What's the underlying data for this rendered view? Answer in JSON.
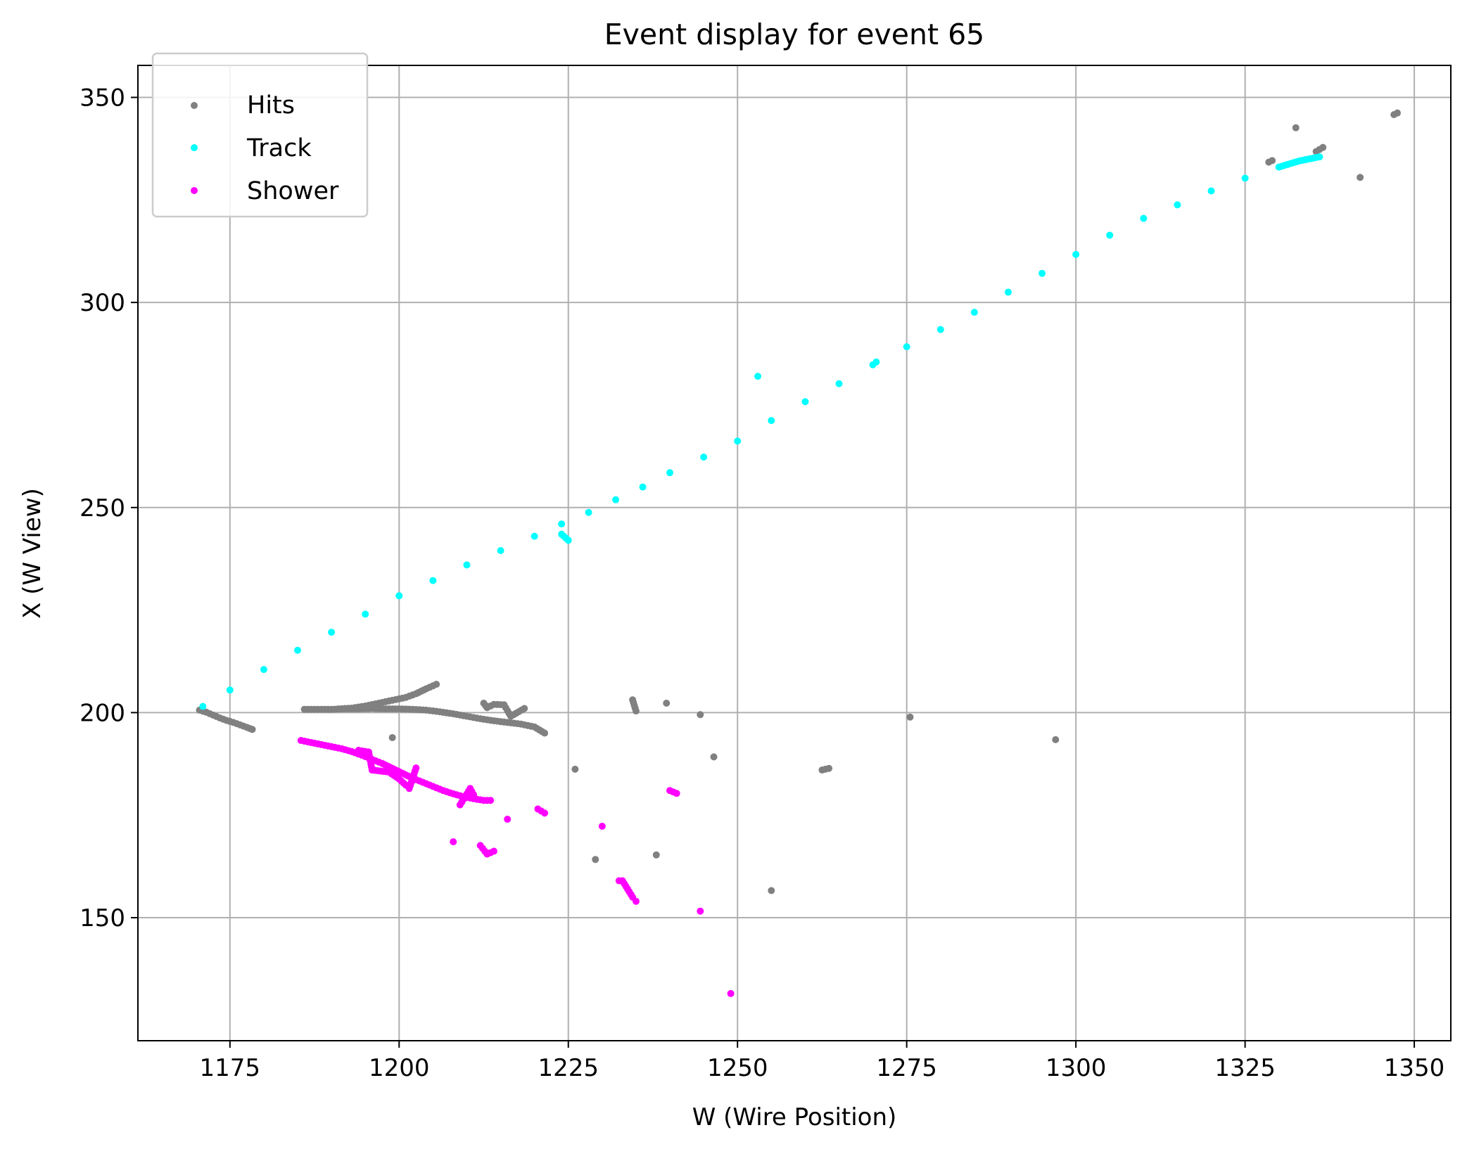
{
  "chart_data": {
    "type": "scatter",
    "title": "Event display for event 65",
    "xlabel": "W (Wire Position)",
    "ylabel": "X (W View)",
    "xlim": [
      1161.4,
      1355.4
    ],
    "ylim": [
      120.0,
      357.8
    ],
    "xticks": [
      1175,
      1200,
      1225,
      1250,
      1275,
      1300,
      1325,
      1350
    ],
    "yticks": [
      150,
      200,
      250,
      300,
      350
    ],
    "grid": true,
    "legend_position": "top-left",
    "series": [
      {
        "name": "Hits",
        "color": "#808080",
        "marker": "dot",
        "points": [
          [
            1170.5,
            200.6
          ],
          [
            1171.5,
            200.1
          ],
          [
            1172.5,
            199.4
          ],
          [
            1173.5,
            198.7
          ],
          [
            1174.5,
            198.1
          ],
          [
            1175.5,
            197.6
          ],
          [
            1176.5,
            197.0
          ],
          [
            1177.5,
            196.4
          ],
          [
            1178.3,
            195.9
          ],
          [
            1186.0,
            200.8
          ],
          [
            1188.0,
            200.8
          ],
          [
            1190.0,
            200.8
          ],
          [
            1192.0,
            200.9
          ],
          [
            1194.0,
            200.9
          ],
          [
            1196.0,
            201.0
          ],
          [
            1198.0,
            200.9
          ],
          [
            1200.0,
            200.9
          ],
          [
            1202.0,
            200.8
          ],
          [
            1204.0,
            200.6
          ],
          [
            1206.0,
            200.2
          ],
          [
            1208.0,
            199.7
          ],
          [
            1210.0,
            199.1
          ],
          [
            1212.0,
            198.5
          ],
          [
            1214.0,
            198.0
          ],
          [
            1216.0,
            197.6
          ],
          [
            1218.0,
            197.2
          ],
          [
            1220.0,
            196.5
          ],
          [
            1221.5,
            195.0
          ],
          [
            1191.0,
            200.9
          ],
          [
            1193.0,
            201.1
          ],
          [
            1195.0,
            201.6
          ],
          [
            1197.0,
            202.3
          ],
          [
            1199.0,
            203.0
          ],
          [
            1201.0,
            203.7
          ],
          [
            1202.5,
            204.6
          ],
          [
            1204.0,
            205.8
          ],
          [
            1205.5,
            206.9
          ],
          [
            1212.5,
            202.3
          ],
          [
            1213.0,
            201.2
          ],
          [
            1214.0,
            202.0
          ],
          [
            1215.5,
            201.9
          ],
          [
            1216.5,
            199.1
          ],
          [
            1218.5,
            201.0
          ],
          [
            1199.0,
            193.9
          ],
          [
            1226.0,
            186.2
          ],
          [
            1229.0,
            164.2
          ],
          [
            1234.5,
            203.1
          ],
          [
            1235.0,
            200.4
          ],
          [
            1238.0,
            165.3
          ],
          [
            1239.5,
            202.3
          ],
          [
            1244.5,
            199.5
          ],
          [
            1246.5,
            189.2
          ],
          [
            1255.0,
            156.6
          ],
          [
            1262.5,
            186.0
          ],
          [
            1263.5,
            186.4
          ],
          [
            1275.5,
            198.9
          ],
          [
            1297.0,
            193.4
          ],
          [
            1328.5,
            334.2
          ],
          [
            1329.0,
            334.6
          ],
          [
            1332.5,
            342.6
          ],
          [
            1335.5,
            336.8
          ],
          [
            1336.5,
            337.8
          ],
          [
            1342.0,
            330.5
          ],
          [
            1347.0,
            345.8
          ],
          [
            1347.5,
            346.2
          ]
        ]
      },
      {
        "name": "Track",
        "color": "#00ffff",
        "marker": "dot",
        "points": [
          [
            1171.0,
            201.5
          ],
          [
            1175.0,
            205.5
          ],
          [
            1180.0,
            210.5
          ],
          [
            1185.0,
            215.2
          ],
          [
            1190.0,
            219.6
          ],
          [
            1195.0,
            224.0
          ],
          [
            1200.0,
            228.5
          ],
          [
            1205.0,
            232.2
          ],
          [
            1210.0,
            236.0
          ],
          [
            1215.0,
            239.5
          ],
          [
            1220.0,
            243.0
          ],
          [
            1224.0,
            246.0
          ],
          [
            1228.0,
            248.8
          ],
          [
            1232.0,
            251.9
          ],
          [
            1236.0,
            255.0
          ],
          [
            1240.0,
            258.5
          ],
          [
            1245.0,
            262.3
          ],
          [
            1250.0,
            266.2
          ],
          [
            1255.0,
            271.2
          ],
          [
            1260.0,
            275.8
          ],
          [
            1265.0,
            280.2
          ],
          [
            1270.0,
            284.8
          ],
          [
            1275.0,
            289.2
          ],
          [
            1280.0,
            293.4
          ],
          [
            1285.0,
            297.6
          ],
          [
            1290.0,
            302.5
          ],
          [
            1295.0,
            307.1
          ],
          [
            1300.0,
            311.7
          ],
          [
            1305.0,
            316.4
          ],
          [
            1310.0,
            320.5
          ],
          [
            1315.0,
            323.8
          ],
          [
            1320.0,
            327.2
          ],
          [
            1325.0,
            330.3
          ],
          [
            1330.0,
            333.0
          ],
          [
            1333.0,
            334.5
          ],
          [
            1336.0,
            335.5
          ],
          [
            1224.0,
            243.5
          ],
          [
            1225.0,
            242.0
          ],
          [
            1253.0,
            282.0
          ],
          [
            1270.5,
            285.5
          ]
        ]
      },
      {
        "name": "Shower",
        "color": "#ff00ff",
        "marker": "dot",
        "points": [
          [
            1185.5,
            193.2
          ],
          [
            1187.0,
            192.7
          ],
          [
            1188.5,
            192.2
          ],
          [
            1190.0,
            191.7
          ],
          [
            1191.5,
            191.2
          ],
          [
            1193.0,
            190.5
          ],
          [
            1194.5,
            189.6
          ],
          [
            1196.0,
            188.6
          ],
          [
            1197.5,
            187.6
          ],
          [
            1199.0,
            186.4
          ],
          [
            1200.5,
            185.2
          ],
          [
            1202.0,
            184.0
          ],
          [
            1203.5,
            183.0
          ],
          [
            1205.0,
            182.0
          ],
          [
            1206.5,
            181.0
          ],
          [
            1208.0,
            180.2
          ],
          [
            1209.5,
            179.5
          ],
          [
            1211.0,
            179.0
          ],
          [
            1212.5,
            178.6
          ],
          [
            1213.5,
            178.6
          ],
          [
            1194.0,
            190.8
          ],
          [
            1195.5,
            190.4
          ],
          [
            1196.0,
            186.0
          ],
          [
            1198.5,
            185.5
          ],
          [
            1200.0,
            183.8
          ],
          [
            1201.0,
            182.3
          ],
          [
            1201.5,
            181.5
          ],
          [
            1202.5,
            186.5
          ],
          [
            1208.0,
            168.5
          ],
          [
            1209.0,
            177.5
          ],
          [
            1210.5,
            181.5
          ],
          [
            1211.0,
            180.0
          ],
          [
            1212.0,
            167.6
          ],
          [
            1213.0,
            165.5
          ],
          [
            1214.0,
            166.2
          ],
          [
            1216.0,
            174.0
          ],
          [
            1220.5,
            176.5
          ],
          [
            1221.5,
            175.5
          ],
          [
            1230.0,
            172.3
          ],
          [
            1232.5,
            159.0
          ],
          [
            1233.0,
            159.0
          ],
          [
            1234.5,
            155.0
          ],
          [
            1235.0,
            154.0
          ],
          [
            1240.0,
            181.0
          ],
          [
            1241.0,
            180.3
          ],
          [
            1244.5,
            151.6
          ],
          [
            1249.0,
            131.5
          ]
        ]
      }
    ]
  }
}
